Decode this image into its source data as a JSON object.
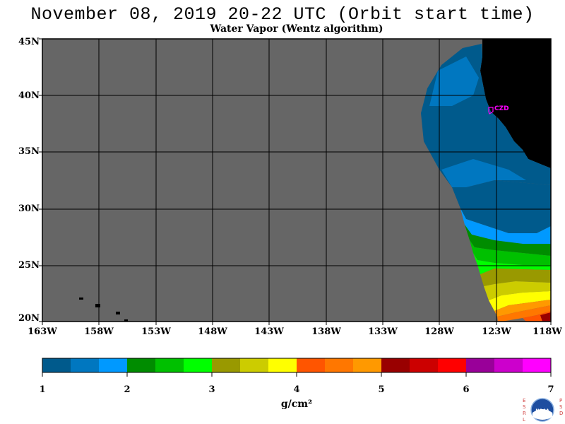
{
  "header": {
    "title": "November 08, 2019  20-22 UTC  (Orbit start time)",
    "subtitle": "Water Vapor (Wentz algorithm)"
  },
  "map": {
    "lat_labels": [
      "45N",
      "40N",
      "35N",
      "30N",
      "25N",
      "20N"
    ],
    "lon_labels": [
      "163W",
      "158W",
      "153W",
      "148W",
      "143W",
      "138W",
      "133W",
      "128W",
      "123W",
      "118W"
    ],
    "station_label": "CZD",
    "colors": {
      "no_data": "#666666",
      "land": "#000000",
      "grid": "#000000",
      "station": "#ff00ff"
    }
  },
  "colorbar": {
    "tick_labels": [
      "1",
      "2",
      "3",
      "4",
      "5",
      "6",
      "7"
    ],
    "units": "g/cm²",
    "colors": [
      "#005a8c",
      "#0077c0",
      "#0099ff",
      "#008c00",
      "#00c000",
      "#00ff00",
      "#999900",
      "#cccc00",
      "#ffff00",
      "#ff5500",
      "#ff7700",
      "#ff9900",
      "#990000",
      "#cc0000",
      "#ff0000",
      "#990099",
      "#cc00cc",
      "#ff00ff"
    ]
  },
  "logo": {
    "left_letters": "ESRL",
    "right_letters": "PSD",
    "center_text": "NOAA"
  }
}
